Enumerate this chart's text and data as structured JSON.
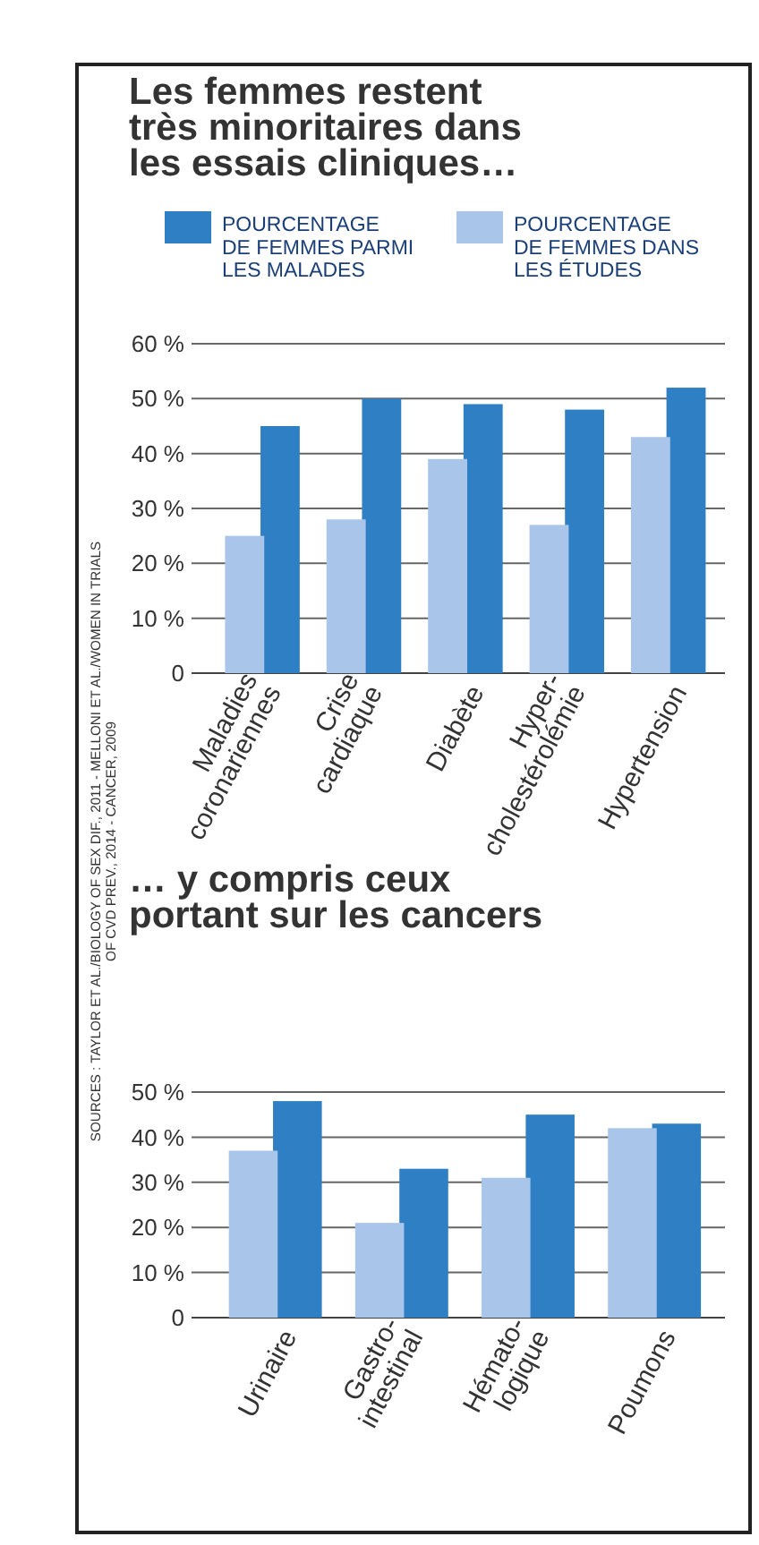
{
  "chart_data": [
    {
      "type": "bar",
      "title": "Les femmes restent\ntrès minoritaires dans\nles essais cliniques…",
      "categories": [
        "Maladies\ncoronariennes",
        "Crise\ncardiaque",
        "Diabète",
        "Hyper-\ncholestérolémie",
        "Hypertension"
      ],
      "series": [
        {
          "name": "POURCENTAGE\nDE FEMMES PARMI\nLES MALADES",
          "color": "#2f7fc4",
          "values": [
            45,
            50,
            49,
            48,
            52
          ]
        },
        {
          "name": "POURCENTAGE\nDE FEMMES DANS\nLES ÉTUDES",
          "color": "#a9c5ea",
          "values": [
            25,
            28,
            39,
            27,
            43
          ]
        }
      ],
      "ylim": [
        0,
        60
      ],
      "yticks": [
        {
          "value": 0,
          "label": "0"
        },
        {
          "value": 10,
          "label": "10 %"
        },
        {
          "value": 20,
          "label": "20 %"
        },
        {
          "value": 30,
          "label": "30 %"
        },
        {
          "value": 40,
          "label": "40 %"
        },
        {
          "value": 50,
          "label": "50 %"
        },
        {
          "value": 60,
          "label": "60 %"
        }
      ],
      "grid": "y",
      "legend": "top",
      "annotations": [
        "SOURCES : TAYLOR ET AL./BIOLOGY OF SEX DIF., 2011 - MELLONI ET AL./WOMEN IN TRIALS\nOF CVD PREV., 2014 - CANCER, 2009"
      ]
    },
    {
      "type": "bar",
      "title": "… y compris ceux\nportant sur les cancers",
      "categories": [
        "Urinaire",
        "Gastro-\nintestinal",
        "Hémato-\nlogique",
        "Poumons"
      ],
      "series": [
        {
          "color": "#2f7fc4",
          "values": [
            48,
            33,
            45,
            43
          ]
        },
        {
          "color": "#a9c5ea",
          "values": [
            37,
            21,
            31,
            42
          ]
        }
      ],
      "ylim": [
        0,
        50
      ],
      "yticks": [
        {
          "value": 0,
          "label": "0"
        },
        {
          "value": 10,
          "label": "10 %"
        },
        {
          "value": 20,
          "label": "20 %"
        },
        {
          "value": 30,
          "label": "30 %"
        },
        {
          "value": 40,
          "label": "40 %"
        },
        {
          "value": 50,
          "label": "50 %"
        }
      ],
      "grid": "y"
    }
  ]
}
